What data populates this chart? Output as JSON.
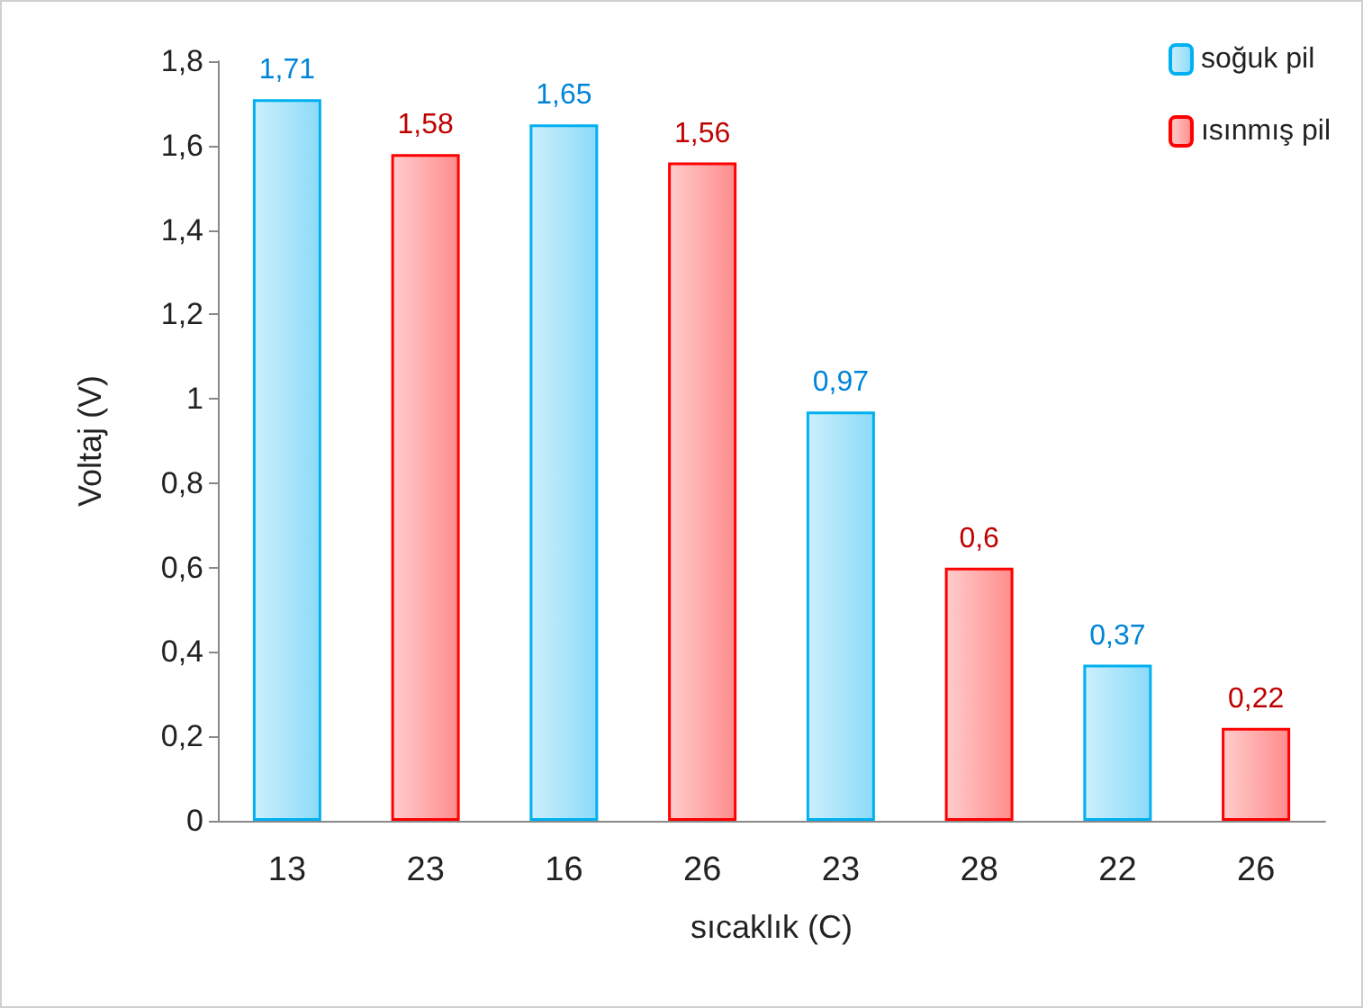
{
  "chart_data": {
    "type": "bar",
    "xlabel": "sıcaklık (C)",
    "ylabel": "Voltaj (V)",
    "categories": [
      "13",
      "23",
      "16",
      "26",
      "23",
      "28",
      "22",
      "26"
    ],
    "series": [
      {
        "name": "soğuk pil",
        "color": "#00b0f0",
        "values": [
          1.71,
          null,
          1.65,
          null,
          0.97,
          null,
          0.37,
          null
        ],
        "value_labels": [
          "1,71",
          null,
          "1,65",
          null,
          "0,97",
          null,
          "0,37",
          null
        ]
      },
      {
        "name": "ısınmış pil",
        "color": "#ff0000",
        "values": [
          null,
          1.58,
          null,
          1.56,
          null,
          0.6,
          null,
          0.22
        ],
        "value_labels": [
          null,
          "1,58",
          null,
          "1,56",
          null,
          "0,6",
          null,
          "0,22"
        ]
      }
    ],
    "ylim": [
      0,
      1.8
    ],
    "yticks": [
      0,
      {
        "value": 0.2,
        "label": "0,2"
      },
      {
        "value": 0.4,
        "label": "0,4"
      },
      {
        "value": 0.6,
        "label": "0,6"
      },
      {
        "value": 0.8,
        "label": "0,8"
      },
      1,
      {
        "value": 1.2,
        "label": "1,2"
      },
      {
        "value": 1.4,
        "label": "1,4"
      },
      {
        "value": 1.6,
        "label": "1,6"
      },
      {
        "value": 1.8,
        "label": "1,8"
      }
    ],
    "grid": false,
    "legend": "top right"
  }
}
